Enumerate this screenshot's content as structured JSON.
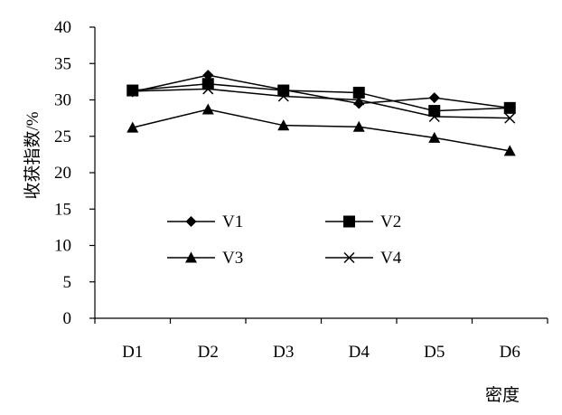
{
  "chart_data": {
    "type": "line",
    "title": "",
    "xlabel": "密度",
    "ylabel": "收获指数/%",
    "categories": [
      "D1",
      "D2",
      "D3",
      "D4",
      "D5",
      "D6"
    ],
    "ylim": [
      0,
      40
    ],
    "yticks": [
      "0",
      "5",
      "10",
      "15",
      "20",
      "25",
      "30",
      "35",
      "40"
    ],
    "grid": false,
    "legend_position": "center-left",
    "series": [
      {
        "name": "V1",
        "marker": "diamond",
        "values": [
          31.1,
          33.4,
          31.4,
          29.5,
          30.3,
          28.9
        ]
      },
      {
        "name": "V2",
        "marker": "square",
        "values": [
          31.3,
          32.2,
          31.3,
          31.0,
          28.5,
          28.9
        ]
      },
      {
        "name": "V3",
        "marker": "triangle",
        "values": [
          26.2,
          28.7,
          26.5,
          26.3,
          24.8,
          23.0
        ]
      },
      {
        "name": "V4",
        "marker": "x",
        "values": [
          31.2,
          31.5,
          30.5,
          30.0,
          27.7,
          27.5
        ]
      }
    ],
    "line_color": "#000000"
  }
}
